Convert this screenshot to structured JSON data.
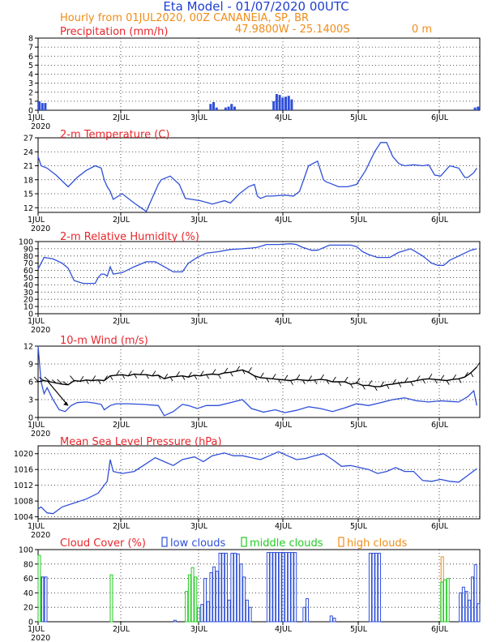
{
  "header": {
    "title": "Eta Model - 01/07/2020 00UTC",
    "subtitle": "Hourly from 01JUL2020, 00Z CANANEIA, SP, BR",
    "coords": "47.9800W - 25.1400S",
    "elevation": "0 m",
    "title_color": "#1f3fd0",
    "subtitle_color": "#f08c18"
  },
  "x_axis": {
    "day_labels": [
      "1JUL",
      "2JUL",
      "3JUL",
      "4JUL",
      "5JUL",
      "6JUL"
    ],
    "year_label": "2020",
    "hours_total": 147
  },
  "chart_data": [
    {
      "id": "precip",
      "type": "bar",
      "title": "Precipitation (mm/h)",
      "ylim": [
        0,
        8
      ],
      "yticks": [
        "0",
        "1",
        "2",
        "3",
        "4",
        "5",
        "6",
        "7",
        "8"
      ],
      "bar_color": "#2f4fd8",
      "bars": [
        {
          "h": 0,
          "v": 1.0
        },
        {
          "h": 1,
          "v": 0.8
        },
        {
          "h": 2,
          "v": 0.8
        },
        {
          "h": 57,
          "v": 0.7
        },
        {
          "h": 58,
          "v": 0.9
        },
        {
          "h": 59,
          "v": 0.3
        },
        {
          "h": 62,
          "v": 0.3
        },
        {
          "h": 63,
          "v": 0.4
        },
        {
          "h": 64,
          "v": 0.7
        },
        {
          "h": 65,
          "v": 0.4
        },
        {
          "h": 78,
          "v": 1.0
        },
        {
          "h": 79,
          "v": 1.8
        },
        {
          "h": 80,
          "v": 1.7
        },
        {
          "h": 81,
          "v": 1.4
        },
        {
          "h": 82,
          "v": 1.5
        },
        {
          "h": 83,
          "v": 1.6
        },
        {
          "h": 84,
          "v": 1.2
        },
        {
          "h": 145,
          "v": 0.3
        },
        {
          "h": 146,
          "v": 0.4
        }
      ]
    },
    {
      "id": "temp",
      "type": "line",
      "title": "2-m Temperature (C)",
      "ylim": [
        11,
        27
      ],
      "yticks": [
        "12",
        "15",
        "18",
        "21",
        "24",
        "27"
      ],
      "line_color": "#2f4fd8",
      "x": [
        0,
        1,
        3,
        6,
        10,
        13,
        16,
        19,
        21,
        22,
        23,
        24,
        25,
        28,
        32,
        36,
        40,
        41,
        44,
        47,
        49,
        51,
        54,
        58,
        62,
        64,
        67,
        70,
        72,
        73,
        74,
        76,
        78,
        82,
        85,
        87,
        90,
        93,
        95,
        96,
        97,
        100,
        103,
        106,
        109,
        112,
        114,
        116,
        118,
        120,
        121,
        122,
        125,
        128,
        130,
        132,
        134,
        137,
        140,
        142,
        143,
        145,
        146
      ],
      "y": [
        23.0,
        21.0,
        20.5,
        19.0,
        16.5,
        18.5,
        20.0,
        21.0,
        20.5,
        18.0,
        16.5,
        15.5,
        13.8,
        15.0,
        13.0,
        11.2,
        17.0,
        18.0,
        18.8,
        17.0,
        14.0,
        13.8,
        13.5,
        12.8,
        13.5,
        13.0,
        15.0,
        16.5,
        17.0,
        14.5,
        14.0,
        14.5,
        14.5,
        14.7,
        14.5,
        15.5,
        21.0,
        22.0,
        18.0,
        17.5,
        17.3,
        16.5,
        16.5,
        17.0,
        20.0,
        24.0,
        26.0,
        26.0,
        23.0,
        21.5,
        21.2,
        21.0,
        21.2,
        21.0,
        21.2,
        19.0,
        18.8,
        21.0,
        20.5,
        18.5,
        18.5,
        19.5,
        20.5
      ]
    },
    {
      "id": "rh",
      "type": "line",
      "title": "2-m Relative Humidity (%)",
      "ylim": [
        0,
        100
      ],
      "yticks": [
        "0",
        "10",
        "20",
        "30",
        "40",
        "50",
        "60",
        "70",
        "80",
        "90",
        "100"
      ],
      "line_color": "#2f4fd8",
      "x": [
        0,
        2,
        5,
        8,
        10,
        12,
        15,
        19,
        20,
        21,
        22,
        23,
        24,
        25,
        28,
        32,
        36,
        39,
        42,
        45,
        48,
        50,
        53,
        56,
        60,
        64,
        68,
        71,
        73,
        76,
        80,
        84,
        86,
        88,
        91,
        93,
        97,
        101,
        104,
        106,
        108,
        110,
        113,
        117,
        120,
        124,
        128,
        131,
        133,
        135,
        137,
        140,
        144,
        146
      ],
      "y": [
        62,
        78,
        76,
        70,
        63,
        46,
        42,
        42,
        50,
        55,
        55,
        52,
        65,
        55,
        57,
        65,
        72,
        72,
        65,
        58,
        58,
        70,
        78,
        84,
        86,
        89,
        90,
        91,
        92,
        96,
        96,
        97,
        96,
        92,
        88,
        88,
        95,
        95,
        95,
        93,
        86,
        82,
        78,
        78,
        85,
        90,
        80,
        70,
        67,
        67,
        74,
        80,
        88,
        90
      ]
    },
    {
      "id": "wind",
      "type": "line",
      "title": "10-m Wind (m/s)",
      "ylim": [
        0,
        12
      ],
      "yticks": [
        "0",
        "3",
        "6",
        "9",
        "12"
      ],
      "line_color": "#2f4fd8",
      "arrow_color": "#000000",
      "x": [
        0,
        1,
        2,
        3,
        5,
        7,
        9,
        11,
        13,
        16,
        19,
        21,
        22,
        24,
        26,
        30,
        35,
        40,
        42,
        45,
        48,
        50,
        53,
        56,
        60,
        64,
        68,
        71,
        75,
        79,
        82,
        86,
        90,
        94,
        98,
        102,
        106,
        110,
        114,
        118,
        122,
        126,
        130,
        134,
        137,
        140,
        143,
        145,
        146
      ],
      "y": [
        12.0,
        6.0,
        4.0,
        5.0,
        3.0,
        1.3,
        1.0,
        2.0,
        2.5,
        2.6,
        2.4,
        2.2,
        1.3,
        2.0,
        2.3,
        2.3,
        2.2,
        2.0,
        0.3,
        1.0,
        2.2,
        2.0,
        1.5,
        2.0,
        2.0,
        2.5,
        3.0,
        1.5,
        0.9,
        1.3,
        0.8,
        1.2,
        1.8,
        1.5,
        1.0,
        1.6,
        2.3,
        2.0,
        2.5,
        3.0,
        3.3,
        2.8,
        2.6,
        2.8,
        2.7,
        2.6,
        3.5,
        4.5,
        2.0
      ],
      "arrow_base": {
        "x": [
          0,
          2,
          4,
          6,
          8,
          10,
          12,
          14,
          16,
          18,
          20,
          22,
          24,
          26,
          28,
          30,
          32,
          34,
          36,
          38,
          40,
          42,
          44,
          46,
          48,
          50,
          52,
          54,
          56,
          58,
          60,
          62,
          64,
          66,
          68,
          70,
          72,
          74,
          76,
          78,
          80,
          82,
          84,
          86,
          88,
          90,
          92,
          94,
          96,
          98,
          100,
          102,
          104,
          106,
          108,
          110,
          112,
          114,
          116,
          118,
          120,
          122,
          124,
          126,
          128,
          130,
          132,
          134,
          136,
          138,
          140,
          142,
          144,
          146
        ],
        "y": [
          6.0,
          6.2,
          6.0,
          5.8,
          5.6,
          5.5,
          6.2,
          6.1,
          6.3,
          6.2,
          6.3,
          6.2,
          7.0,
          7.1,
          7.2,
          7.0,
          7.3,
          7.2,
          7.2,
          7.0,
          7.1,
          6.5,
          6.8,
          6.9,
          7.0,
          6.8,
          7.1,
          7.0,
          7.2,
          7.3,
          7.2,
          7.5,
          7.6,
          7.8,
          8.0,
          7.6,
          7.0,
          6.7,
          6.6,
          6.5,
          6.4,
          6.3,
          6.2,
          6.4,
          6.3,
          6.2,
          6.3,
          6.4,
          6.3,
          6.0,
          6.0,
          6.0,
          5.6,
          5.8,
          5.4,
          5.4,
          5.2,
          5.2,
          5.5,
          5.6,
          5.8,
          5.9,
          6.0,
          6.2,
          6.4,
          6.5,
          6.4,
          6.3,
          6.2,
          6.4,
          6.5,
          6.8,
          7.5,
          8.5
        ]
      }
    },
    {
      "id": "mslp",
      "type": "line",
      "title": "Mean Sea Level Pressure (hPa)",
      "ylim": [
        1003.5,
        1022
      ],
      "yticks": [
        "1004",
        "1008",
        "1012",
        "1016",
        "1020"
      ],
      "line_color": "#2f4fd8",
      "x": [
        0,
        1,
        3,
        5,
        8,
        12,
        16,
        20,
        23,
        24,
        25,
        28,
        32,
        36,
        39,
        42,
        45,
        48,
        52,
        55,
        58,
        62,
        65,
        68,
        71,
        74,
        77,
        80,
        83,
        86,
        89,
        92,
        95,
        98,
        101,
        104,
        107,
        110,
        113,
        116,
        119,
        122,
        125,
        128,
        131,
        134,
        137,
        140,
        143,
        146
      ],
      "y": [
        1006.0,
        1006.5,
        1005.0,
        1004.8,
        1006.5,
        1007.5,
        1008.5,
        1010.0,
        1013.0,
        1018.5,
        1015.5,
        1015.0,
        1015.5,
        1017.5,
        1019.0,
        1018.0,
        1017.0,
        1018.5,
        1019.2,
        1018.0,
        1019.5,
        1020.2,
        1019.5,
        1019.5,
        1019.0,
        1018.5,
        1019.5,
        1020.5,
        1019.5,
        1018.5,
        1018.8,
        1019.5,
        1020.0,
        1018.5,
        1016.8,
        1017.0,
        1016.5,
        1016.0,
        1015.0,
        1015.5,
        1016.5,
        1015.5,
        1015.5,
        1013.2,
        1013.0,
        1013.5,
        1013.0,
        1012.8,
        1014.5,
        1016.2
      ]
    },
    {
      "id": "cloud",
      "type": "bar",
      "title": "Cloud Cover (%)",
      "ylim": [
        0,
        100
      ],
      "yticks": [
        "0",
        "20",
        "40",
        "60",
        "80",
        "100"
      ],
      "legend": [
        {
          "label": "low clouds",
          "color": "#2f4fd8"
        },
        {
          "label": "middle clouds",
          "color": "#22cc22"
        },
        {
          "label": "high clouds",
          "color": "#f08c18"
        }
      ],
      "low": [
        {
          "h": 1,
          "v": 62
        },
        {
          "h": 2,
          "v": 62
        },
        {
          "h": 45,
          "v": 2
        },
        {
          "h": 54,
          "v": 24
        },
        {
          "h": 55,
          "v": 60
        },
        {
          "h": 56,
          "v": 28
        },
        {
          "h": 57,
          "v": 68
        },
        {
          "h": 58,
          "v": 76
        },
        {
          "h": 59,
          "v": 70
        },
        {
          "h": 60,
          "v": 95
        },
        {
          "h": 61,
          "v": 95
        },
        {
          "h": 62,
          "v": 95
        },
        {
          "h": 63,
          "v": 30
        },
        {
          "h": 64,
          "v": 95
        },
        {
          "h": 65,
          "v": 95
        },
        {
          "h": 66,
          "v": 94
        },
        {
          "h": 67,
          "v": 80
        },
        {
          "h": 68,
          "v": 62
        },
        {
          "h": 69,
          "v": 30
        },
        {
          "h": 70,
          "v": 20
        },
        {
          "h": 76,
          "v": 96
        },
        {
          "h": 77,
          "v": 96
        },
        {
          "h": 78,
          "v": 96
        },
        {
          "h": 79,
          "v": 96
        },
        {
          "h": 80,
          "v": 96
        },
        {
          "h": 81,
          "v": 96
        },
        {
          "h": 82,
          "v": 96
        },
        {
          "h": 83,
          "v": 96
        },
        {
          "h": 84,
          "v": 96
        },
        {
          "h": 85,
          "v": 96
        },
        {
          "h": 88,
          "v": 20
        },
        {
          "h": 89,
          "v": 32
        },
        {
          "h": 97,
          "v": 8
        },
        {
          "h": 98,
          "v": 5
        },
        {
          "h": 110,
          "v": 95
        },
        {
          "h": 111,
          "v": 95
        },
        {
          "h": 112,
          "v": 95
        },
        {
          "h": 113,
          "v": 95
        },
        {
          "h": 140,
          "v": 40
        },
        {
          "h": 141,
          "v": 48
        },
        {
          "h": 142,
          "v": 42
        },
        {
          "h": 143,
          "v": 30
        },
        {
          "h": 144,
          "v": 62
        },
        {
          "h": 145,
          "v": 79
        },
        {
          "h": 146,
          "v": 25
        }
      ],
      "middle": [
        {
          "h": 0,
          "v": 92
        },
        {
          "h": 1,
          "v": 62
        },
        {
          "h": 24,
          "v": 65
        },
        {
          "h": 49,
          "v": 42
        },
        {
          "h": 50,
          "v": 65
        },
        {
          "h": 51,
          "v": 75
        },
        {
          "h": 52,
          "v": 62
        },
        {
          "h": 53,
          "v": 20
        },
        {
          "h": 134,
          "v": 55
        },
        {
          "h": 135,
          "v": 58
        },
        {
          "h": 136,
          "v": 60
        }
      ],
      "high": [
        {
          "h": 134,
          "v": 90
        }
      ]
    }
  ]
}
